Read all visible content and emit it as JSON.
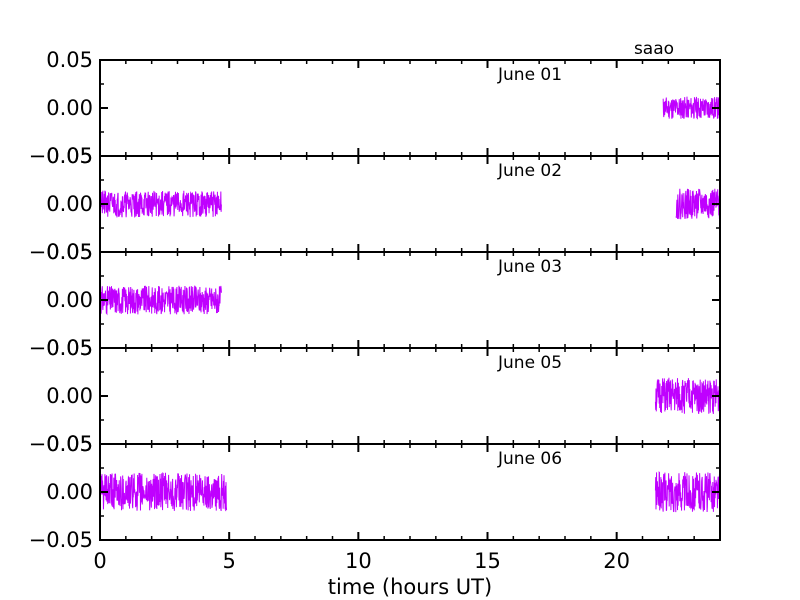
{
  "chart_data": {
    "type": "line",
    "xlabel": "time (hours UT)",
    "xlim": [
      0,
      24
    ],
    "x_ticks": [
      "0",
      "5",
      "10",
      "15",
      "20"
    ],
    "ylim": [
      -0.05,
      0.05
    ],
    "y_ticks": [
      "−0.05",
      "0.00",
      "0.05"
    ],
    "legend": "saao",
    "line_color": "#bf00ff",
    "panels": [
      {
        "label": "June 01",
        "segments": [
          {
            "start": 21.8,
            "end": 24.0,
            "amplitude": 0.012,
            "seed": 11
          }
        ]
      },
      {
        "label": "June 02",
        "segments": [
          {
            "start": 0.0,
            "end": 4.7,
            "amplitude": 0.014,
            "seed": 21
          },
          {
            "start": 22.3,
            "end": 24.0,
            "amplitude": 0.016,
            "seed": 22
          }
        ]
      },
      {
        "label": "June 03",
        "segments": [
          {
            "start": 0.0,
            "end": 4.7,
            "amplitude": 0.015,
            "seed": 31
          }
        ]
      },
      {
        "label": "June 05",
        "segments": [
          {
            "start": 21.5,
            "end": 24.0,
            "amplitude": 0.019,
            "seed": 51
          }
        ]
      },
      {
        "label": "June 06",
        "segments": [
          {
            "start": 0.0,
            "end": 4.9,
            "amplitude": 0.02,
            "seed": 61
          },
          {
            "start": 21.5,
            "end": 24.0,
            "amplitude": 0.021,
            "seed": 62
          }
        ]
      }
    ]
  }
}
